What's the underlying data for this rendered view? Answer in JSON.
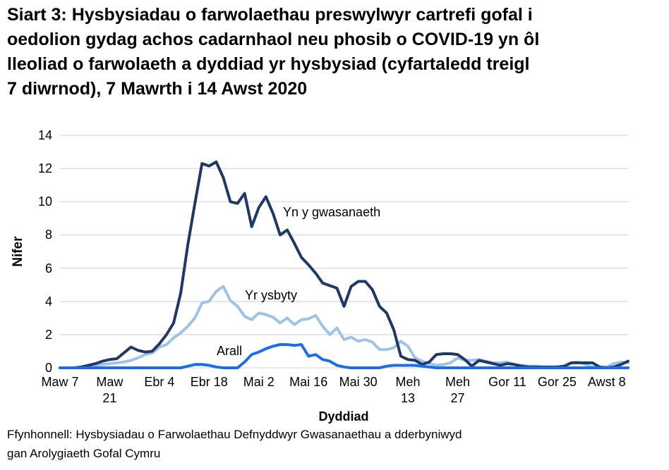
{
  "title": "Siart 3: Hysbysiadau o farwolaethau preswylwyr cartrefi gofal i\noedolion gydag achos cadarnhaol neu phosib o COVID-19 yn ôl\nlleoliad o farwolaeth a dyddiad yr hysbysiad (cyfartaledd treigl\n7 diwrnod), 7 Mawrth i 14 Awst 2020",
  "source": "Ffynhonnell: Hysbysiadau o Farwolaethau Defnyddwyr Gwasanaethau a dderbyniwyd\ngan Arolygiaeth Gofal Cymru",
  "colors": {
    "gwasanaeth": "#1F3864",
    "ysbyty": "#9DC3E6",
    "arall": "#1C6EE6",
    "gridline": "#D9D9D9"
  },
  "chart_data": {
    "type": "line",
    "title": "Siart 3: Hysbysiadau o farwolaethau preswylwyr cartrefi gofal i oedolion gydag achos cadarnhaol neu phosib o COVID-19 yn ôl lleoliad o farwolaeth a dyddiad yr hysbysiad (cyfartaledd treigl 7 diwrnod), 7 Mawrth i 14 Awst 2020",
    "xlabel": "Dyddiad",
    "ylabel": "Nifer",
    "ylim": [
      0,
      14
    ],
    "yticks": [
      0,
      2,
      4,
      6,
      8,
      10,
      12,
      14
    ],
    "grid": "horizontal",
    "x_start": "7 Mawrth 2020",
    "x_end": "14 Awst 2020",
    "point_spacing_days": 2,
    "legend_position": "inline-annotations",
    "xticks": [
      {
        "i": 0,
        "label": "Maw 7"
      },
      {
        "i": 7,
        "label": "Maw\n21"
      },
      {
        "i": 14,
        "label": "Ebr 4"
      },
      {
        "i": 21,
        "label": "Ebr 18"
      },
      {
        "i": 28,
        "label": "Mai 2"
      },
      {
        "i": 35,
        "label": "Mai 16"
      },
      {
        "i": 42,
        "label": "Mai 30"
      },
      {
        "i": 49,
        "label": "Meh\n13"
      },
      {
        "i": 56,
        "label": "Meh\n27"
      },
      {
        "i": 63,
        "label": "Gor 11"
      },
      {
        "i": 70,
        "label": "Gor 25"
      },
      {
        "i": 77,
        "label": "Awst 8"
      }
    ],
    "series": [
      {
        "name": "Yn y gwasanaeth",
        "color": "#1F3864",
        "values": [
          0,
          0,
          0,
          0.05,
          0.15,
          0.25,
          0.4,
          0.5,
          0.55,
          0.9,
          1.25,
          1.05,
          0.95,
          1.0,
          1.45,
          2.0,
          2.7,
          4.5,
          7.4,
          9.9,
          12.3,
          12.15,
          12.4,
          11.45,
          10.0,
          9.9,
          10.5,
          8.5,
          9.65,
          10.3,
          9.3,
          8.0,
          8.3,
          7.5,
          6.65,
          6.2,
          5.7,
          5.1,
          4.95,
          4.8,
          3.7,
          4.9,
          5.2,
          5.2,
          4.7,
          3.7,
          3.3,
          2.3,
          0.7,
          0.5,
          0.45,
          0.2,
          0.35,
          0.8,
          0.85,
          0.85,
          0.8,
          0.5,
          0.1,
          0.45,
          0.35,
          0.25,
          0.15,
          0.25,
          0.2,
          0.1,
          0.05,
          0.05,
          0.05,
          0.05,
          0.05,
          0.1,
          0.3,
          0.3,
          0.3,
          0.3,
          0.05,
          0,
          0.05,
          0.2,
          0.4
        ]
      },
      {
        "name": "Yr ysbyty",
        "color": "#9DC3E6",
        "values": [
          0,
          0,
          0,
          0,
          0.1,
          0.15,
          0.2,
          0.25,
          0.3,
          0.35,
          0.45,
          0.6,
          0.8,
          0.9,
          1.25,
          1.4,
          1.8,
          2.1,
          2.5,
          3.0,
          3.9,
          4.0,
          4.6,
          4.9,
          4.05,
          3.7,
          3.1,
          2.9,
          3.3,
          3.2,
          3.05,
          2.7,
          3.0,
          2.6,
          2.9,
          2.95,
          3.15,
          2.5,
          2.0,
          2.4,
          1.7,
          1.85,
          1.6,
          1.7,
          1.55,
          1.1,
          1.1,
          1.2,
          1.6,
          1.3,
          0.6,
          0.4,
          0.25,
          0.15,
          0.2,
          0.3,
          0.6,
          0.45,
          0.45,
          0.5,
          0.4,
          0.3,
          0.3,
          0.35,
          0.2,
          0.15,
          0.1,
          0.1,
          0.05,
          0.05,
          0.05,
          0.1,
          0.3,
          0.35,
          0.2,
          0.05,
          0.05,
          0.05,
          0.25,
          0.35,
          0.3
        ]
      },
      {
        "name": "Arall",
        "color": "#1C6EE6",
        "values": [
          0,
          0,
          0,
          0,
          0,
          0,
          0,
          0,
          0,
          0,
          0,
          0,
          0,
          0,
          0,
          0,
          0,
          0,
          0.1,
          0.2,
          0.2,
          0.15,
          0.05,
          0,
          0,
          0,
          0.35,
          0.8,
          0.95,
          1.15,
          1.3,
          1.4,
          1.4,
          1.35,
          1.4,
          0.7,
          0.8,
          0.5,
          0.4,
          0.15,
          0.05,
          0,
          0,
          0,
          0,
          0,
          0.1,
          0.15,
          0.15,
          0.15,
          0.15,
          0.1,
          0.05,
          0,
          0,
          0,
          0,
          0,
          0,
          0,
          0,
          0,
          0,
          0,
          0,
          0,
          0,
          0,
          0,
          0,
          0,
          0,
          0,
          0,
          0,
          0,
          0,
          0,
          0,
          0,
          0
        ]
      }
    ]
  }
}
